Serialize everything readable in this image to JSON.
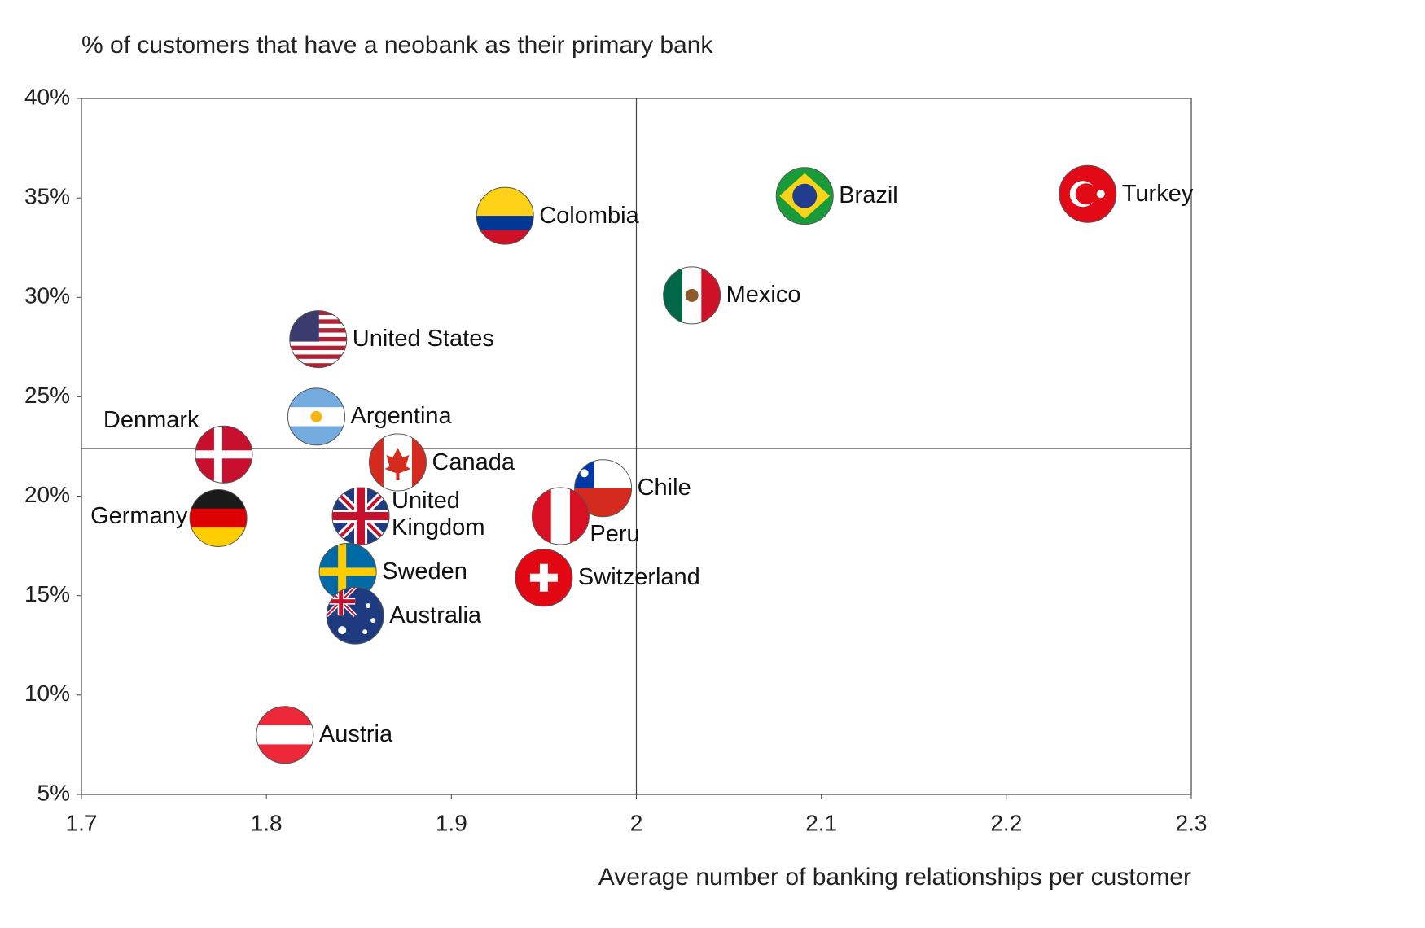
{
  "chart_data": {
    "type": "scatter",
    "title": "% of customers that have a neobank as their primary bank",
    "x_label": "Average number of banking relationships per customer",
    "labels": [
      "Brazil",
      "Turkey",
      "Colombia",
      "Mexico",
      "United States",
      "Argentina",
      "Denmark",
      "Canada",
      "Chile",
      "Germany",
      "United Kingdom",
      "Peru",
      "Sweden",
      "Switzerland",
      "Australia",
      "Austria"
    ],
    "x": [
      2.091,
      2.244,
      1.929,
      2.03,
      1.828,
      1.827,
      1.777,
      1.871,
      1.982,
      1.774,
      1.851,
      1.959,
      1.844,
      1.95,
      1.848,
      1.81
    ],
    "values": [
      35.1,
      35.2,
      34.1,
      30.1,
      27.9,
      24.0,
      22.1,
      21.7,
      20.4,
      18.9,
      19.0,
      19.0,
      16.2,
      15.9,
      14.0,
      8.0
    ],
    "xlim": [
      1.7,
      2.3
    ],
    "xticks": [
      1.7,
      1.8,
      1.9,
      2,
      2.1,
      2.2,
      2.3
    ],
    "ylim": [
      5,
      40
    ],
    "yticks": [
      {
        "value": 5,
        "label": "5%"
      },
      {
        "value": 10,
        "label": "10%"
      },
      {
        "value": 15,
        "label": "15%"
      },
      {
        "value": 20,
        "label": "20%"
      },
      {
        "value": 25,
        "label": "25%"
      },
      {
        "value": 30,
        "label": "30%"
      },
      {
        "value": 35,
        "label": "35%"
      },
      {
        "value": 40,
        "label": "40%"
      }
    ],
    "quadrant_x": 2,
    "quadrant_y": 22.4
  }
}
